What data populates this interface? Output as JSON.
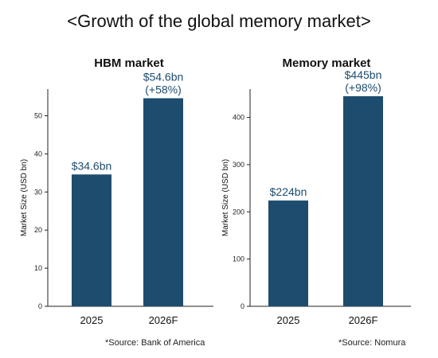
{
  "page_title": "<Growth of the global memory market>",
  "chart_data": [
    {
      "type": "bar",
      "title": "HBM market",
      "ylabel": "Market Size (USD bn)",
      "xlabel": "",
      "categories": [
        "2025",
        "2026F"
      ],
      "values": [
        34.6,
        54.6
      ],
      "data_labels": [
        [
          "$34.6bn"
        ],
        [
          "$54.6bn",
          "(+58%)"
        ]
      ],
      "yticks": [
        0,
        10,
        20,
        30,
        40,
        50
      ],
      "ylim": [
        0,
        57
      ],
      "bar_color": "#1d4c6e",
      "source": "*Source: Bank of America"
    },
    {
      "type": "bar",
      "title": "Memory market",
      "ylabel": "Market Size (USD bn)",
      "xlabel": "",
      "categories": [
        "2025",
        "2026F"
      ],
      "values": [
        224,
        445
      ],
      "data_labels": [
        [
          "$224bn"
        ],
        [
          "$445bn",
          "(+98%)"
        ]
      ],
      "yticks": [
        0,
        100,
        200,
        300,
        400
      ],
      "ylim": [
        0,
        460
      ],
      "bar_color": "#1d4c6e",
      "source": "*Source: Nomura"
    }
  ]
}
